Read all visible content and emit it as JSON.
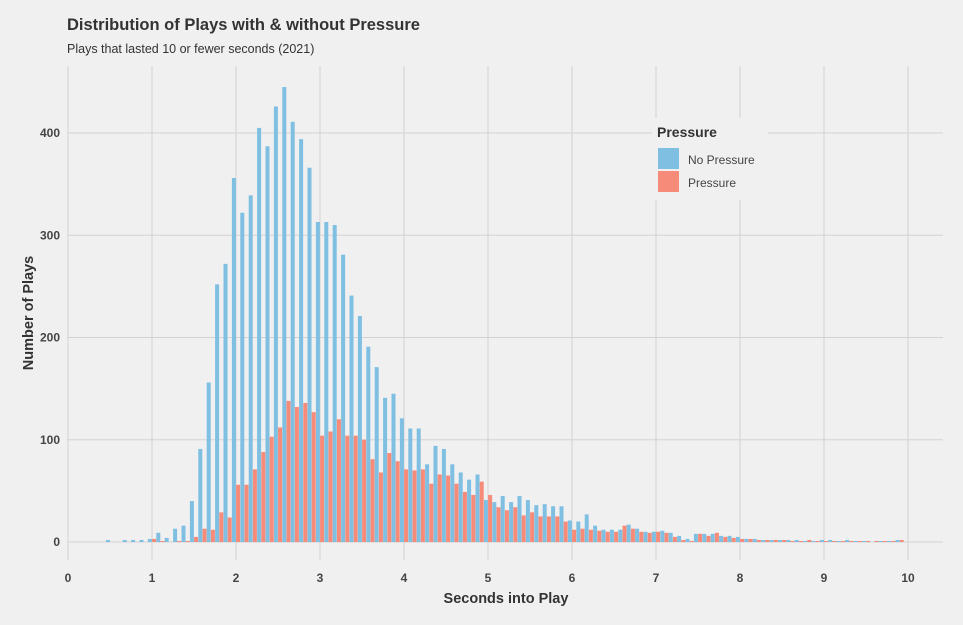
{
  "chart_data": {
    "type": "bar",
    "title": "Distribution of Plays with & without Pressure",
    "subtitle": "Plays that lasted 10 or fewer seconds (2021)",
    "xlabel": "Seconds into Play",
    "ylabel": "Number of Plays",
    "xlim": [
      0,
      10.4
    ],
    "ylim": [
      0,
      460
    ],
    "x_ticks": [
      0,
      1,
      2,
      3,
      4,
      5,
      6,
      7,
      8,
      9,
      10
    ],
    "y_ticks": [
      0,
      100,
      200,
      300,
      400
    ],
    "grid": true,
    "legend": {
      "title": "Pressure",
      "position": "top-right"
    },
    "colors": {
      "No Pressure": "#7fbfe2",
      "Pressure": "#f78b79"
    },
    "x": [
      0.5,
      0.6,
      0.7,
      0.8,
      0.9,
      1.0,
      1.1,
      1.2,
      1.3,
      1.4,
      1.5,
      1.6,
      1.7,
      1.8,
      1.9,
      2.0,
      2.1,
      2.2,
      2.3,
      2.4,
      2.5,
      2.6,
      2.7,
      2.8,
      2.9,
      3.0,
      3.1,
      3.2,
      3.3,
      3.4,
      3.5,
      3.6,
      3.7,
      3.8,
      3.9,
      4.0,
      4.1,
      4.2,
      4.3,
      4.4,
      4.5,
      4.6,
      4.7,
      4.8,
      4.9,
      5.0,
      5.1,
      5.2,
      5.3,
      5.4,
      5.5,
      5.6,
      5.7,
      5.8,
      5.9,
      6.0,
      6.1,
      6.2,
      6.3,
      6.4,
      6.5,
      6.6,
      6.7,
      6.8,
      6.9,
      7.0,
      7.1,
      7.2,
      7.3,
      7.4,
      7.5,
      7.6,
      7.7,
      7.8,
      7.9,
      8.0,
      8.1,
      8.2,
      8.3,
      8.4,
      8.5,
      8.6,
      8.7,
      8.8,
      8.9,
      9.0,
      9.1,
      9.2,
      9.3,
      9.4,
      9.5,
      9.6,
      9.7,
      9.8,
      9.9
    ],
    "series": [
      {
        "name": "No Pressure",
        "values": [
          2,
          0,
          2,
          2,
          2,
          3,
          9,
          4,
          13,
          16,
          40,
          91,
          156,
          252,
          272,
          356,
          322,
          339,
          405,
          387,
          426,
          445,
          411,
          394,
          366,
          313,
          313,
          310,
          281,
          241,
          221,
          191,
          171,
          141,
          145,
          121,
          111,
          111,
          76,
          94,
          91,
          76,
          68,
          61,
          66,
          41,
          39,
          45,
          39,
          45,
          41,
          36,
          37,
          35,
          35,
          21,
          20,
          27,
          16,
          12,
          12,
          12,
          17,
          13,
          10,
          10,
          11,
          9,
          6,
          3,
          8,
          8,
          8,
          6,
          6,
          5,
          3,
          3,
          2,
          2,
          2,
          2,
          2,
          1,
          1,
          2,
          2,
          1,
          2,
          1,
          1,
          0,
          1,
          1,
          2
        ]
      },
      {
        "name": "Pressure",
        "values": [
          0,
          0,
          0,
          0,
          0,
          3,
          1,
          0,
          1,
          1,
          5,
          13,
          12,
          29,
          24,
          56,
          56,
          71,
          88,
          103,
          112,
          138,
          132,
          136,
          127,
          104,
          108,
          120,
          104,
          104,
          100,
          81,
          68,
          87,
          79,
          71,
          70,
          71,
          57,
          66,
          65,
          57,
          49,
          46,
          59,
          46,
          34,
          31,
          34,
          26,
          29,
          25,
          25,
          25,
          20,
          12,
          13,
          12,
          11,
          10,
          10,
          16,
          13,
          10,
          9,
          10,
          9,
          5,
          2,
          1,
          8,
          6,
          9,
          5,
          4,
          3,
          3,
          2,
          2,
          2,
          2,
          1,
          1,
          2,
          1,
          1,
          1,
          1,
          1,
          1,
          1,
          1,
          1,
          1,
          2
        ]
      }
    ]
  }
}
